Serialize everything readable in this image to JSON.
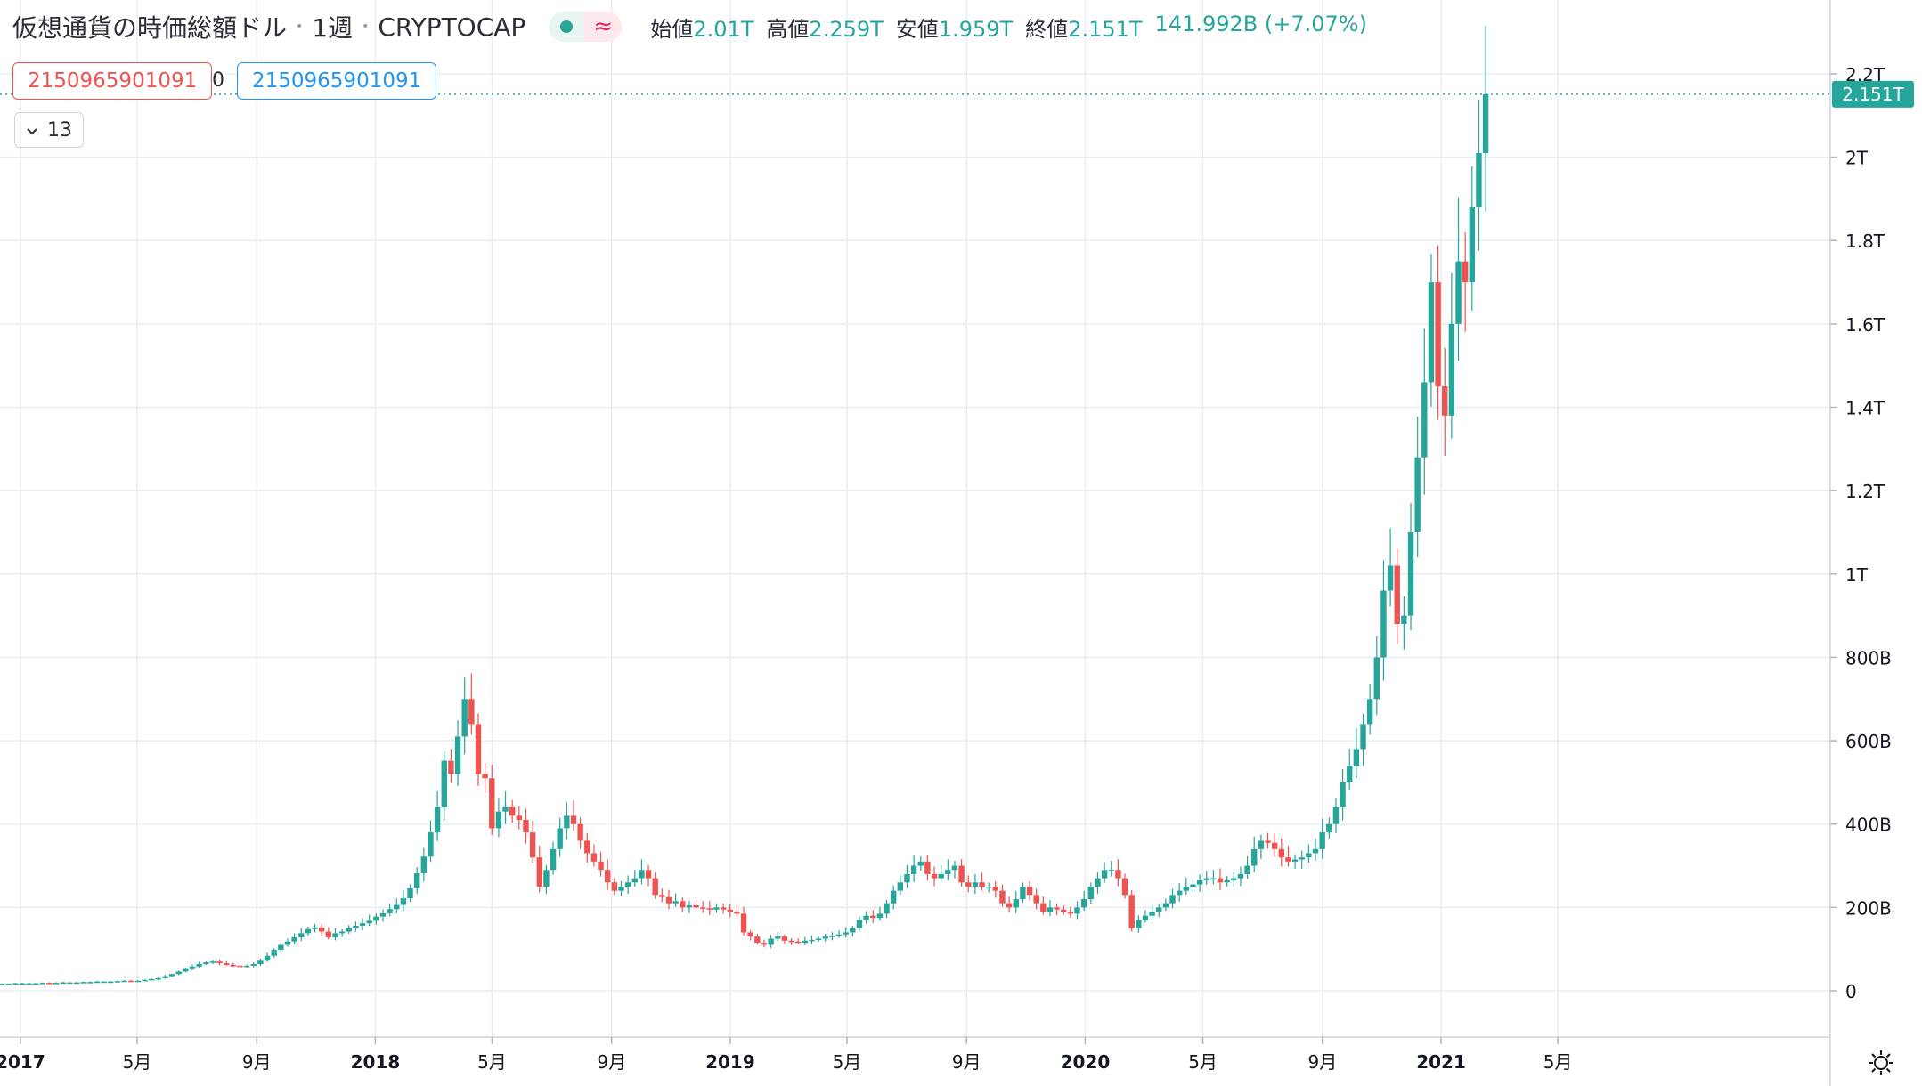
{
  "header": {
    "title": "仮想通貨の時価総額ドル",
    "interval": "1週",
    "source": "CRYPTOCAP",
    "status_icon": "live-dot-icon",
    "delay_icon": "≈"
  },
  "ohlc": {
    "open_label": "始値",
    "open": "2.01T",
    "high_label": "高値",
    "high": "2.259T",
    "low_label": "安値",
    "low": "1.959T",
    "close_label": "終値",
    "close": "2.151T",
    "change": "141.992B (+7.07%)"
  },
  "inputs": {
    "left_value": "2150965901091",
    "middle_value": "0",
    "right_value": "2150965901091",
    "collapse_count": "13"
  },
  "price_tag": "2.151T",
  "colors": {
    "up": "#26a69a",
    "down": "#ef5350",
    "grid": "#e8edf3",
    "axis_text": "#131722"
  },
  "chart_data": {
    "type": "candlestick",
    "title": "仮想通貨の時価総額ドル",
    "y_tick_labels": [
      "0",
      "200B",
      "400B",
      "600B",
      "800B",
      "1T",
      "1.2T",
      "1.4T",
      "1.6T",
      "1.8T",
      "2T",
      "2.2T"
    ],
    "y_tick_values": [
      0,
      200,
      400,
      600,
      800,
      1000,
      1200,
      1400,
      1600,
      1800,
      2000,
      2200
    ],
    "y_unit": "B",
    "ylim": [
      -40,
      2300
    ],
    "x_tick_labels": [
      "2017",
      "5月",
      "9月",
      "2018",
      "5月",
      "9月",
      "2019",
      "5月",
      "9月",
      "2020",
      "5月",
      "9月",
      "2021",
      "5月"
    ],
    "x_tick_major": [
      true,
      false,
      false,
      true,
      false,
      false,
      true,
      false,
      false,
      true,
      false,
      false,
      true,
      false
    ],
    "x_tick_dates": [
      "2017-01-01",
      "2017-05-01",
      "2017-09-01",
      "2018-01-01",
      "2018-05-01",
      "2018-09-01",
      "2019-01-01",
      "2019-05-01",
      "2019-09-01",
      "2020-01-01",
      "2020-05-01",
      "2020-09-01",
      "2021-01-01",
      "2021-05-01"
    ],
    "x_start": "2016-12-11",
    "close_series": [
      17,
      17,
      18,
      18,
      18,
      18,
      19,
      18,
      19,
      20,
      20,
      20,
      21,
      21,
      22,
      22,
      22,
      23,
      24,
      23,
      24,
      26,
      28,
      30,
      35,
      40,
      46,
      52,
      58,
      64,
      68,
      70,
      66,
      62,
      60,
      58,
      60,
      64,
      72,
      84,
      98,
      110,
      118,
      128,
      138,
      148,
      152,
      142,
      128,
      138,
      142,
      150,
      156,
      162,
      168,
      178,
      186,
      196,
      206,
      222,
      246,
      282,
      322,
      380,
      440,
      552,
      520,
      610,
      700,
      640,
      520,
      510,
      390,
      430,
      440,
      420,
      410,
      380,
      320,
      250,
      290,
      340,
      390,
      420,
      400,
      360,
      330,
      310,
      290,
      260,
      240,
      250,
      260,
      270,
      290,
      270,
      230,
      225,
      210,
      215,
      200,
      205,
      200,
      198,
      195,
      200,
      195,
      190,
      185,
      140,
      130,
      115,
      110,
      125,
      130,
      120,
      118,
      115,
      120,
      122,
      125,
      130,
      132,
      135,
      140,
      150,
      170,
      180,
      175,
      185,
      210,
      240,
      260,
      280,
      300,
      310,
      280,
      270,
      280,
      290,
      300,
      260,
      250,
      260,
      250,
      250,
      240,
      210,
      200,
      220,
      250,
      230,
      210,
      190,
      200,
      195,
      190,
      185,
      200,
      220,
      250,
      270,
      290,
      290,
      270,
      230,
      150,
      170,
      180,
      190,
      200,
      210,
      230,
      240,
      250,
      255,
      265,
      270,
      270,
      260,
      265,
      270,
      280,
      300,
      340,
      360,
      355,
      340,
      320,
      310,
      315,
      320,
      330,
      340,
      380,
      400,
      440,
      500,
      540,
      580,
      640,
      700,
      800,
      960,
      1020,
      880,
      900,
      1100,
      1280,
      1460,
      1700,
      1450,
      1380,
      1600,
      1750,
      1700,
      1880,
      2010,
      2151
    ]
  }
}
